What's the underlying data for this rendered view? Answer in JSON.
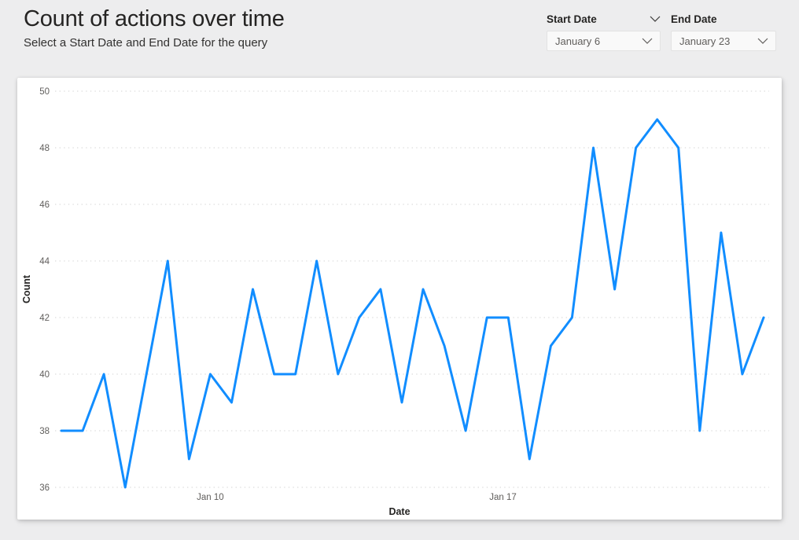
{
  "header": {
    "title": "Count of actions over time",
    "subtitle": "Select a Start Date and End Date for the query"
  },
  "slicers": {
    "start_date": {
      "label": "Start Date",
      "value": "January 6"
    },
    "end_date": {
      "label": "End Date",
      "value": "January 23"
    }
  },
  "chart_data": {
    "type": "line",
    "title": "Count of actions over time",
    "xlabel": "Date",
    "ylabel": "Count",
    "ylim": [
      36,
      50
    ],
    "yticks": [
      36,
      38,
      40,
      42,
      44,
      46,
      48,
      50
    ],
    "x_range": {
      "start": "January 6",
      "end": "January 23",
      "points_per_day": 2
    },
    "values": [
      38,
      38,
      40,
      36,
      40,
      44,
      37,
      40,
      39,
      43,
      40,
      40,
      44,
      40,
      42,
      43,
      39,
      43,
      41,
      38,
      42,
      42,
      37,
      41,
      42,
      48,
      43,
      48,
      49,
      48,
      38,
      45,
      40,
      42
    ],
    "x_ticks": [
      {
        "label": "Jan 10",
        "position": 7.0
      },
      {
        "label": "Jan 17",
        "position": 20.75
      }
    ],
    "legend": "none",
    "grid": "horizontal-dotted",
    "line_color": "#118DFF"
  },
  "colors": {
    "accent": "#118DFF",
    "text_primary": "#252423",
    "text_secondary": "#605E5C",
    "page_background": "#EDEDEE",
    "card_background": "#FFFFFF",
    "gridline": "#DCDCDC"
  }
}
